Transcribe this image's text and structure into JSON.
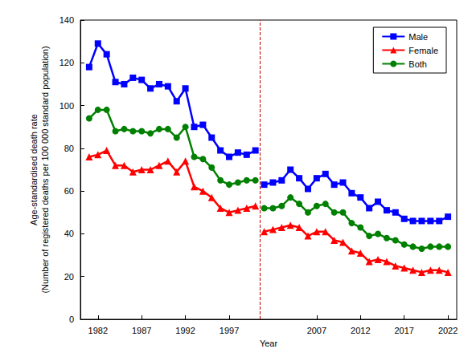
{
  "chart_data": {
    "type": "line",
    "x_label": "Year",
    "y_label": "Age-standardised death rate\n(Number of registered deaths per 100 000 standard population)",
    "x": [
      1981,
      1982,
      1983,
      1984,
      1985,
      1986,
      1987,
      1988,
      1989,
      1990,
      1991,
      1992,
      1993,
      1994,
      1995,
      1996,
      1997,
      1998,
      1999,
      2000,
      2001,
      2002,
      2003,
      2004,
      2005,
      2006,
      2007,
      2008,
      2009,
      2010,
      2011,
      2012,
      2013,
      2014,
      2015,
      2016,
      2017,
      2018,
      2019,
      2020,
      2021,
      2022
    ],
    "series": [
      {
        "name": "Male",
        "color": "#0000ff",
        "marker": "square",
        "values": [
          118,
          129,
          124,
          111,
          110,
          113,
          112,
          108,
          110,
          109,
          102,
          108,
          90,
          91,
          85,
          79,
          76,
          78,
          77,
          79,
          63,
          64,
          65,
          70,
          66,
          61,
          66,
          68,
          63,
          64,
          59,
          57,
          52,
          55,
          51,
          50,
          47,
          46,
          46,
          46,
          46,
          48
        ]
      },
      {
        "name": "Female",
        "color": "#ff0000",
        "marker": "triangle",
        "values": [
          76,
          77,
          79,
          72,
          72,
          69,
          70,
          70,
          72,
          74,
          69,
          74,
          62,
          60,
          57,
          52,
          50,
          51,
          52,
          53,
          41,
          42,
          43,
          44,
          43,
          39,
          41,
          41,
          37,
          36,
          32,
          31,
          27,
          28,
          27,
          25,
          24,
          23,
          22,
          23,
          23,
          22
        ]
      },
      {
        "name": "Both",
        "color": "#008000",
        "marker": "circle",
        "values": [
          94,
          98,
          98,
          88,
          89,
          88,
          88,
          87,
          89,
          89,
          85,
          90,
          76,
          75,
          71,
          65,
          63,
          64,
          65,
          65,
          52,
          52,
          53,
          57,
          54,
          50,
          53,
          54,
          50,
          50,
          45,
          43,
          39,
          40,
          38,
          37,
          35,
          34,
          33,
          34,
          34,
          34
        ]
      }
    ],
    "reference_line": {
      "x": 2000.5,
      "color": "#c00000",
      "line_style": "dashed"
    },
    "xlim": [
      1980,
      2023
    ],
    "xticks": [
      1982,
      1987,
      1992,
      1997,
      2007,
      2012,
      2017,
      2022
    ],
    "ylim": [
      0,
      140
    ],
    "yticks": [
      0,
      20,
      40,
      60,
      80,
      100,
      120,
      140
    ],
    "grid": false,
    "legend": "upper right"
  }
}
